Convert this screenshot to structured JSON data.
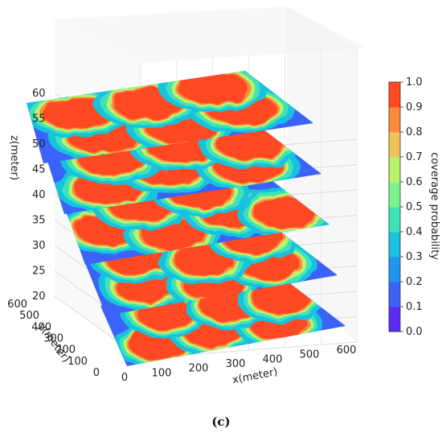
{
  "chart_data": {
    "type": "heatmap",
    "subtype": "3d-stacked-planes",
    "caption": "(c)",
    "xlabel": "x(meter)",
    "ylabel": "y(meter)",
    "zlabel": "z(meter)",
    "colorbar_label": "coverage probability",
    "colormap": "rainbow",
    "x_ticks": [
      "0",
      "100",
      "200",
      "300",
      "400",
      "500",
      "600"
    ],
    "y_ticks": [
      "0",
      "100",
      "200",
      "300",
      "400",
      "500",
      "600"
    ],
    "z_ticks": [
      "20",
      "25",
      "30",
      "35",
      "40",
      "45",
      "50",
      "55",
      "60"
    ],
    "colorbar_ticks": [
      "0.0",
      "0.1",
      "0.2",
      "0.3",
      "0.4",
      "0.5",
      "0.6",
      "0.7",
      "0.8",
      "0.9",
      "1.0"
    ],
    "colorbar_colors": [
      "#5b2bf5",
      "#3b63f7",
      "#1f95f2",
      "#18c2de",
      "#3fe3b8",
      "#7cf58e",
      "#b9f36a",
      "#f0c35a",
      "#fc8a3e",
      "#ff4a22"
    ],
    "xlim": [
      0,
      600
    ],
    "ylim": [
      0,
      600
    ],
    "zlim": [
      20,
      60
    ],
    "clim": [
      0.0,
      1.0
    ],
    "layers_z": [
      20,
      30,
      40,
      50,
      60
    ],
    "grid": true
  }
}
